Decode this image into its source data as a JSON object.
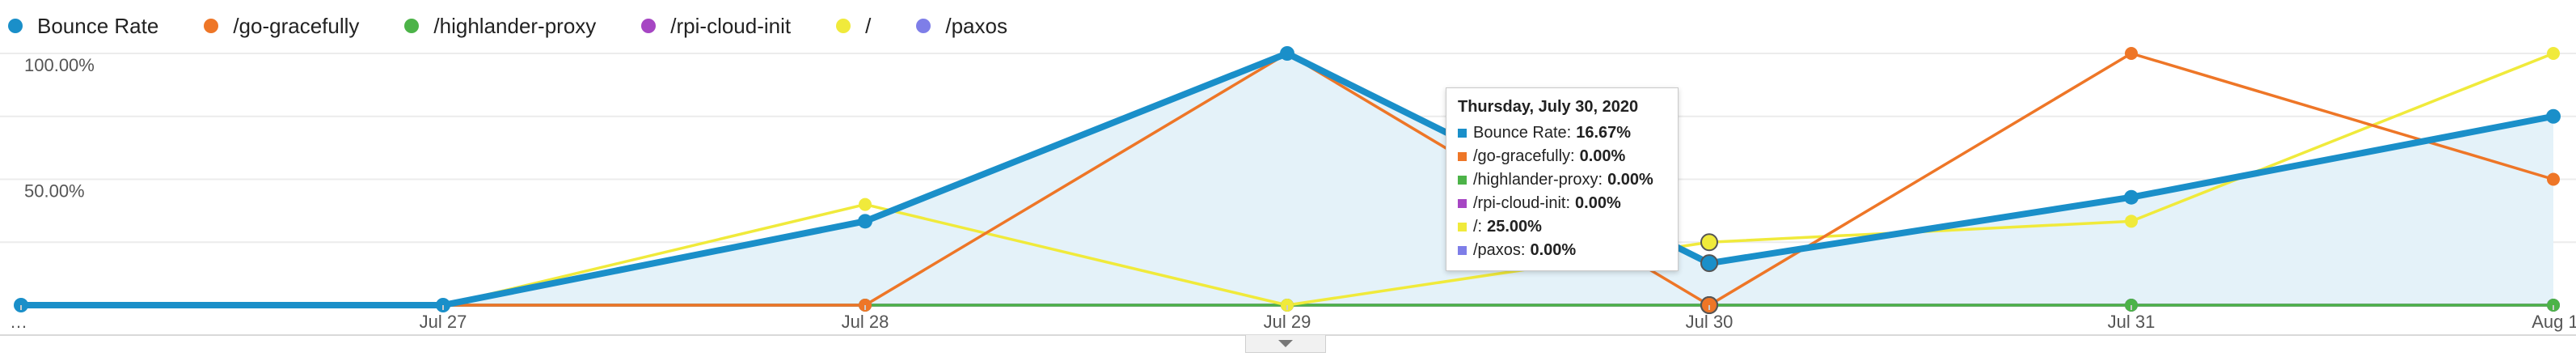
{
  "legend": {
    "items": [
      {
        "label": "Bounce Rate",
        "color": "#1a8fc9"
      },
      {
        "label": "/go-gracefully",
        "color": "#ee7627"
      },
      {
        "label": "/highlander-proxy",
        "color": "#4cb348"
      },
      {
        "label": "/rpi-cloud-init",
        "color": "#a646c3"
      },
      {
        "label": "/",
        "color": "#f0ea3b"
      },
      {
        "label": "/paxos",
        "color": "#7e7ee8"
      }
    ]
  },
  "chart_data": {
    "type": "line",
    "x": [
      "…",
      "Jul 27",
      "Jul 28",
      "Jul 29",
      "Jul 30",
      "Jul 31",
      "Aug 1"
    ],
    "ylim": [
      0,
      100
    ],
    "yticks": [
      "50.00%",
      "100.00%"
    ],
    "ytick_values": [
      50,
      100
    ],
    "grid": true,
    "legend_position": "top",
    "series": [
      {
        "name": "Bounce Rate",
        "color": "#1a8fc9",
        "values": [
          0,
          0,
          33.33,
          100,
          16.67,
          42.86,
          75
        ],
        "area": true
      },
      {
        "name": "/go-gracefully",
        "color": "#ee7627",
        "values": [
          0,
          0,
          0,
          100,
          0,
          100,
          50
        ]
      },
      {
        "name": "/highlander-proxy",
        "color": "#4cb348",
        "values": [
          0,
          0,
          0,
          0,
          0,
          0,
          0
        ]
      },
      {
        "name": "/rpi-cloud-init",
        "color": "#a646c3",
        "values": [
          0,
          0,
          0,
          0,
          0,
          0,
          0
        ]
      },
      {
        "name": "/",
        "color": "#f0ea3b",
        "values": [
          0,
          0,
          40,
          0,
          25,
          33.33,
          100
        ]
      },
      {
        "name": "/paxos",
        "color": "#7e7ee8",
        "values": [
          0,
          0,
          0,
          0,
          0,
          0,
          0
        ]
      }
    ],
    "highlight_index": 4
  },
  "tooltip": {
    "title": "Thursday, July 30, 2020",
    "rows": [
      {
        "label": "Bounce Rate:",
        "value": "16.67%",
        "color": "#1a8fc9"
      },
      {
        "label": "/go-gracefully:",
        "value": "0.00%",
        "color": "#ee7627"
      },
      {
        "label": "/highlander-proxy:",
        "value": "0.00%",
        "color": "#4cb348"
      },
      {
        "label": "/rpi-cloud-init:",
        "value": "0.00%",
        "color": "#a646c3"
      },
      {
        "label": "/:",
        "value": "25.00%",
        "color": "#f0ea3b"
      },
      {
        "label": "/paxos:",
        "value": "0.00%",
        "color": "#7e7ee8"
      }
    ]
  }
}
